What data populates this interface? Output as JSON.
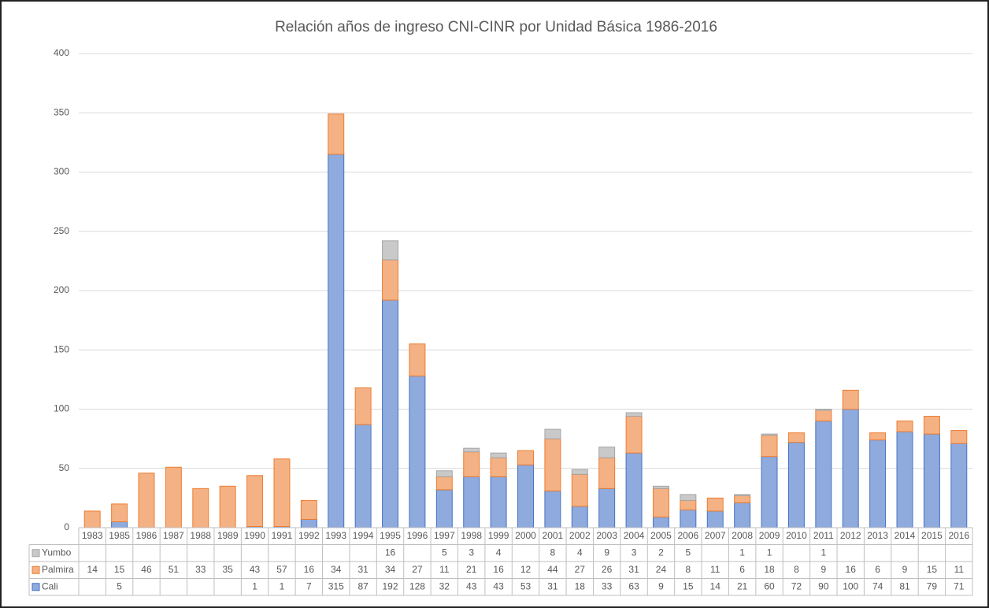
{
  "chart_data": {
    "type": "bar",
    "stacked": true,
    "title": "Relación años de ingreso CNI-CINR por Unidad Básica 1986-2016",
    "categories": [
      "1983",
      "1985",
      "1986",
      "1987",
      "1988",
      "1989",
      "1990",
      "1991",
      "1992",
      "1993",
      "1994",
      "1995",
      "1996",
      "1997",
      "1998",
      "1999",
      "2000",
      "2001",
      "2002",
      "2003",
      "2004",
      "2005",
      "2006",
      "2007",
      "2008",
      "2009",
      "2010",
      "2011",
      "2012",
      "2013",
      "2014",
      "2015",
      "2016"
    ],
    "series": [
      {
        "name": "Cali",
        "color": "#8faadc",
        "stroke": "#4472c4",
        "values": [
          null,
          5,
          null,
          null,
          null,
          null,
          1,
          1,
          7,
          315,
          87,
          192,
          128,
          32,
          43,
          43,
          53,
          31,
          18,
          33,
          63,
          9,
          15,
          14,
          21,
          60,
          72,
          90,
          100,
          74,
          81,
          79,
          71
        ]
      },
      {
        "name": "Palmira",
        "color": "#f4b183",
        "stroke": "#ed7d31",
        "values": [
          14,
          15,
          46,
          51,
          33,
          35,
          43,
          57,
          16,
          34,
          31,
          34,
          27,
          11,
          21,
          16,
          12,
          44,
          27,
          26,
          31,
          24,
          8,
          11,
          6,
          18,
          8,
          9,
          16,
          6,
          9,
          15,
          11
        ]
      },
      {
        "name": "Yumbo",
        "color": "#c9c9c9",
        "stroke": "#a5a5a5",
        "values": [
          null,
          null,
          null,
          null,
          null,
          null,
          null,
          null,
          null,
          null,
          null,
          16,
          null,
          5,
          3,
          4,
          null,
          8,
          4,
          9,
          3,
          2,
          5,
          null,
          1,
          1,
          null,
          1,
          null,
          null,
          null,
          null,
          null
        ]
      }
    ],
    "ylim": [
      0,
      400
    ],
    "yticks": [
      0,
      50,
      100,
      150,
      200,
      250,
      300,
      350,
      400
    ],
    "grid": true
  }
}
